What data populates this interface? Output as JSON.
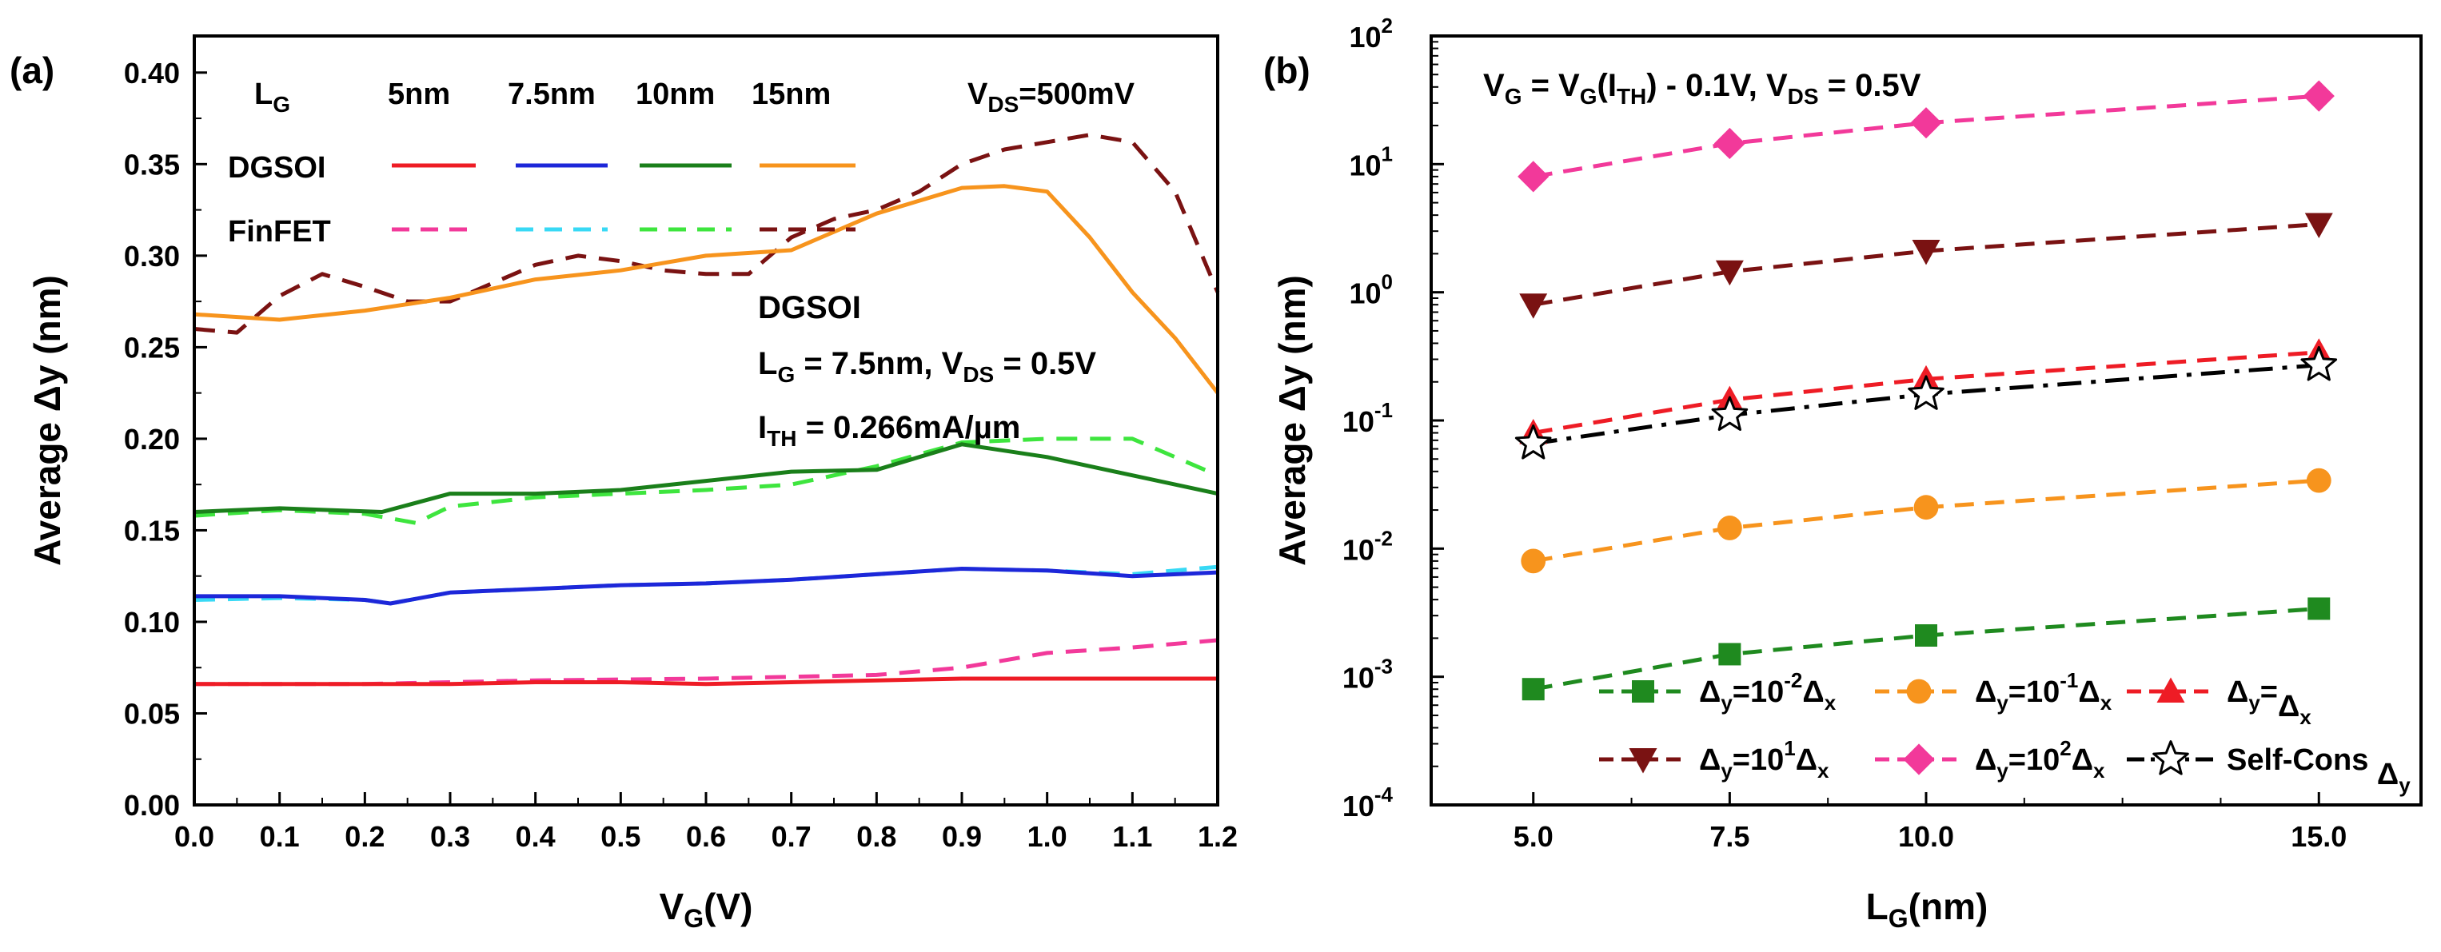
{
  "chart_data": [
    {
      "panel": "(a)",
      "type": "line",
      "xlabel": "V",
      "xlabel_sub": "G",
      "xlabel_tail": "(V)",
      "ylabel": "Average Δy (nm)",
      "xlim": [
        0,
        1.2
      ],
      "ylim": [
        0,
        0.42
      ],
      "xticks": [
        "0.0",
        "0.1",
        "0.2",
        "0.3",
        "0.4",
        "0.5",
        "0.6",
        "0.7",
        "0.8",
        "0.9",
        "1.0",
        "1.1",
        "1.2"
      ],
      "yticks": [
        "0.00",
        "0.05",
        "0.10",
        "0.15",
        "0.20",
        "0.25",
        "0.30",
        "0.35",
        "0.40"
      ],
      "legend": {
        "header": "L",
        "header_sub": "G",
        "lengths": [
          "5nm",
          "7.5nm",
          "10nm",
          "15nm"
        ],
        "rows": [
          "DGSOI",
          "FinFET"
        ],
        "vds": "V",
        "vds_sub": "DS",
        "vds_value": "=500mV"
      },
      "annotation": {
        "line1": "DGSOI",
        "line2_a": "L",
        "line2_a_sub": "G",
        "line2_b": " = 7.5nm, V",
        "line2_b_sub": "DS",
        "line2_c": " = 0.5V",
        "line3_a": "I",
        "line3_a_sub": "TH",
        "line3_b": " = 0.266mA/µm"
      },
      "series": [
        {
          "name": "DGSOI 5nm",
          "device": "DGSOI",
          "length": "5nm",
          "color": "#ee1c25",
          "dash": "solid",
          "x": [
            0,
            0.1,
            0.2,
            0.3,
            0.4,
            0.5,
            0.6,
            0.7,
            0.8,
            0.9,
            1.0,
            1.1,
            1.2
          ],
          "y": [
            0.066,
            0.066,
            0.066,
            0.066,
            0.067,
            0.067,
            0.066,
            0.067,
            0.068,
            0.069,
            0.069,
            0.069,
            0.069
          ]
        },
        {
          "name": "DGSOI 7.5nm",
          "device": "DGSOI",
          "length": "7.5nm",
          "color": "#1d27d9",
          "dash": "solid",
          "x": [
            0,
            0.1,
            0.2,
            0.23,
            0.3,
            0.4,
            0.5,
            0.6,
            0.7,
            0.8,
            0.9,
            1.0,
            1.1,
            1.2
          ],
          "y": [
            0.114,
            0.114,
            0.112,
            0.11,
            0.116,
            0.118,
            0.12,
            0.121,
            0.123,
            0.126,
            0.129,
            0.128,
            0.125,
            0.127
          ]
        },
        {
          "name": "DGSOI 10nm",
          "device": "DGSOI",
          "length": "10nm",
          "color": "#1a7f1a",
          "dash": "solid",
          "x": [
            0,
            0.1,
            0.22,
            0.3,
            0.4,
            0.5,
            0.6,
            0.7,
            0.8,
            0.9,
            1.0,
            1.1,
            1.2
          ],
          "y": [
            0.16,
            0.162,
            0.16,
            0.17,
            0.17,
            0.172,
            0.177,
            0.182,
            0.183,
            0.197,
            0.19,
            0.18,
            0.17
          ]
        },
        {
          "name": "DGSOI 15nm",
          "device": "DGSOI",
          "length": "15nm",
          "color": "#f7941d",
          "dash": "solid",
          "x": [
            0,
            0.1,
            0.2,
            0.3,
            0.4,
            0.5,
            0.6,
            0.7,
            0.8,
            0.9,
            0.95,
            1.0,
            1.05,
            1.1,
            1.15,
            1.2
          ],
          "y": [
            0.268,
            0.265,
            0.27,
            0.277,
            0.287,
            0.292,
            0.3,
            0.303,
            0.323,
            0.337,
            0.338,
            0.335,
            0.31,
            0.28,
            0.255,
            0.225
          ]
        },
        {
          "name": "FinFET 5nm",
          "device": "FinFET",
          "length": "5nm",
          "color": "#f2399a",
          "dash": "dash",
          "x": [
            0,
            0.2,
            0.4,
            0.6,
            0.8,
            0.9,
            1.0,
            1.1,
            1.2
          ],
          "y": [
            0.066,
            0.066,
            0.068,
            0.069,
            0.071,
            0.075,
            0.083,
            0.086,
            0.09
          ]
        },
        {
          "name": "FinFET 7.5nm",
          "device": "FinFET",
          "length": "7.5nm",
          "color": "#38d9f5",
          "dash": "dash",
          "x": [
            0,
            0.1,
            0.2,
            0.23,
            0.3,
            0.4,
            0.5,
            0.6,
            0.7,
            0.8,
            0.9,
            1.0,
            1.1,
            1.2
          ],
          "y": [
            0.112,
            0.113,
            0.112,
            0.11,
            0.116,
            0.118,
            0.12,
            0.121,
            0.123,
            0.126,
            0.129,
            0.128,
            0.126,
            0.13
          ]
        },
        {
          "name": "FinFET 10nm",
          "device": "FinFET",
          "length": "10nm",
          "color": "#3ee53e",
          "dash": "dash",
          "x": [
            0,
            0.1,
            0.2,
            0.26,
            0.3,
            0.4,
            0.5,
            0.6,
            0.7,
            0.8,
            0.9,
            1.0,
            1.1,
            1.2
          ],
          "y": [
            0.158,
            0.161,
            0.159,
            0.154,
            0.163,
            0.168,
            0.17,
            0.172,
            0.175,
            0.185,
            0.198,
            0.2,
            0.2,
            0.18
          ]
        },
        {
          "name": "FinFET 15nm",
          "device": "FinFET",
          "length": "15nm",
          "color": "#7a1212",
          "dash": "dash",
          "x": [
            0,
            0.05,
            0.1,
            0.15,
            0.2,
            0.25,
            0.3,
            0.35,
            0.4,
            0.45,
            0.5,
            0.55,
            0.6,
            0.65,
            0.7,
            0.75,
            0.8,
            0.85,
            0.9,
            0.95,
            1.0,
            1.05,
            1.1,
            1.15,
            1.2
          ],
          "y": [
            0.26,
            0.258,
            0.278,
            0.29,
            0.283,
            0.275,
            0.275,
            0.285,
            0.295,
            0.3,
            0.297,
            0.292,
            0.29,
            0.29,
            0.31,
            0.32,
            0.325,
            0.335,
            0.35,
            0.358,
            0.362,
            0.366,
            0.362,
            0.335,
            0.28
          ]
        }
      ]
    },
    {
      "panel": "(b)",
      "type": "line",
      "scale_y": "log",
      "xlabel": "L",
      "xlabel_sub": "G",
      "xlabel_tail": "(nm)",
      "ylabel": "Average Δy (nm)",
      "xlim": [
        3.7,
        16.3
      ],
      "ylim_exp": [
        -4,
        2
      ],
      "xticks": [
        5.0,
        7.5,
        10.0,
        15.0
      ],
      "xtick_labels": [
        "5.0",
        "7.5",
        "10.0",
        "15.0"
      ],
      "ytick_base": "10",
      "ytick_exps": [
        "-4",
        "-3",
        "-2",
        "-1",
        "0",
        "1",
        "2"
      ],
      "title_parts": {
        "a": "V",
        "a_sub": "G",
        "b": " = V",
        "b_sub": "G",
        "c": "(I",
        "c_sub": "TH",
        "d": ") - 0.1V, V",
        "d_sub": "DS",
        "e": " = 0.5V"
      },
      "series": [
        {
          "name": "Δy=10^-2 Δx",
          "legend_parts": [
            "Δ",
            "y",
            "=10",
            "-2",
            "Δ",
            "x"
          ],
          "color": "#1f8a1f",
          "marker": "square",
          "x": [
            5,
            7.5,
            10,
            15
          ],
          "y": [
            0.0008,
            0.0015,
            0.0021,
            0.0034
          ]
        },
        {
          "name": "Δy=10^-1 Δx",
          "legend_parts": [
            "Δ",
            "y",
            "=10",
            "-1",
            "Δ",
            "x"
          ],
          "color": "#f7941d",
          "marker": "circle",
          "x": [
            5,
            7.5,
            10,
            15
          ],
          "y": [
            0.008,
            0.0145,
            0.021,
            0.034
          ]
        },
        {
          "name": "Δy=Δx",
          "legend_parts": [
            "Δ",
            "y",
            "=",
            "",
            "Δ",
            "x"
          ],
          "color": "#ee1c25",
          "marker": "triangle-up",
          "x": [
            5,
            7.5,
            10,
            15
          ],
          "y": [
            0.08,
            0.145,
            0.21,
            0.34
          ]
        },
        {
          "name": "Δy=10^1 Δx",
          "legend_parts": [
            "Δ",
            "y",
            "=10",
            "1",
            "Δ",
            "x"
          ],
          "color": "#7a1212",
          "marker": "triangle-down",
          "x": [
            5,
            7.5,
            10,
            15
          ],
          "y": [
            0.8,
            1.45,
            2.1,
            3.4
          ]
        },
        {
          "name": "Δy=10^2 Δx",
          "legend_parts": [
            "Δ",
            "y",
            "=10",
            "2",
            "Δ",
            "x"
          ],
          "color": "#f2399a",
          "marker": "diamond",
          "x": [
            5,
            7.5,
            10,
            15
          ],
          "y": [
            8,
            14.5,
            21,
            34
          ]
        },
        {
          "name": "Self-Cons Δy",
          "legend_parts": [
            "Self-Cons ",
            "",
            "",
            "",
            "Δ",
            "y"
          ],
          "color": "#000000",
          "marker": "star",
          "dash": "dashdot",
          "x": [
            5,
            7.5,
            10,
            15
          ],
          "y": [
            0.066,
            0.11,
            0.16,
            0.27
          ]
        }
      ]
    }
  ]
}
